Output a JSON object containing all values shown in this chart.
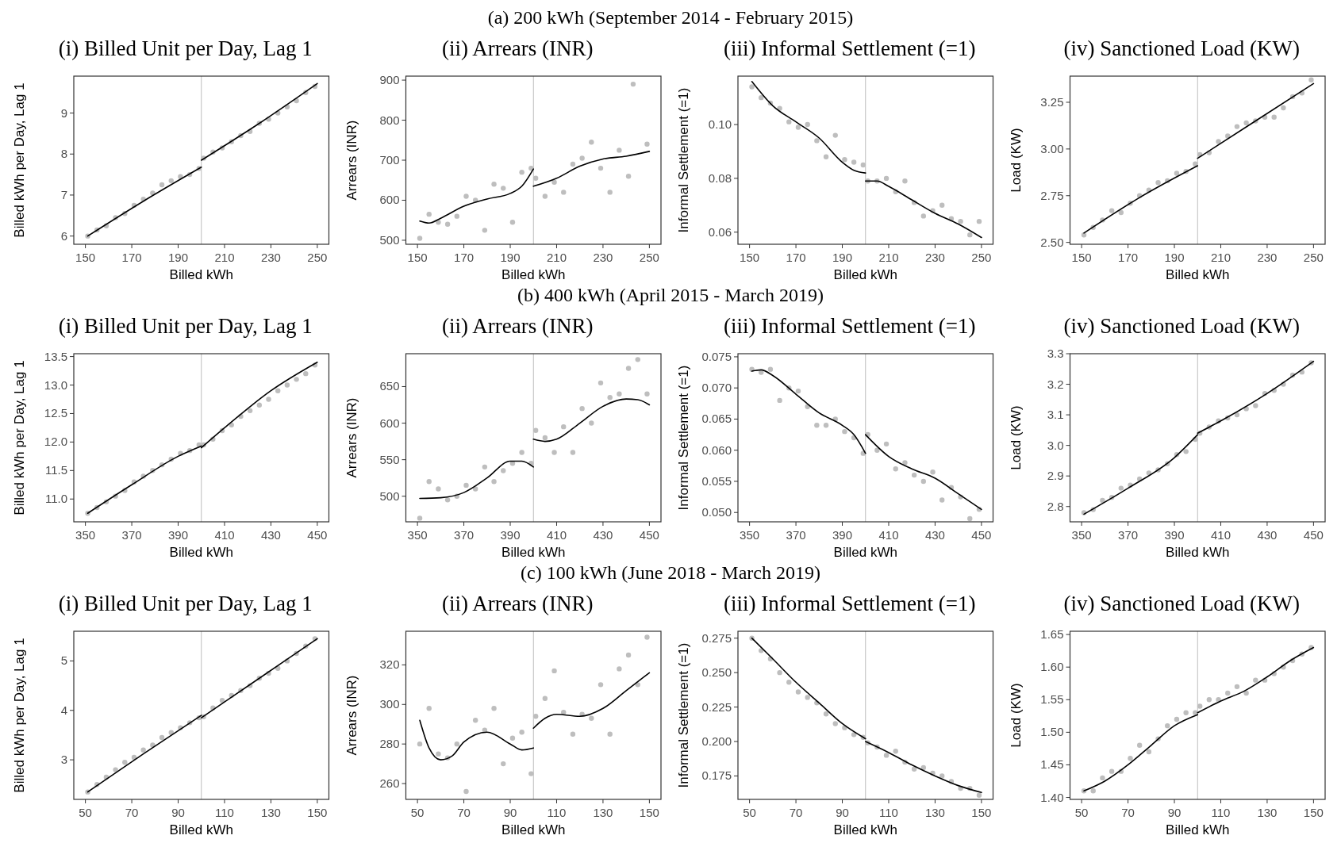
{
  "chart_data": [
    {
      "type": "scatter",
      "title": "(i) Billed Unit per Day, Lag 1",
      "annotations": [
        "(a) 200 kWh (September 2014 - February 2015)"
      ],
      "xlabel": "Billed kWh",
      "ylabel": "Billed kWh per Day, Lag 1",
      "xlim": [
        145,
        255
      ],
      "xticks": [
        150,
        170,
        190,
        210,
        230,
        250
      ],
      "ylim": [
        5.8,
        9.9
      ],
      "yticks": [
        6,
        7,
        8,
        9
      ],
      "grid": false,
      "x": [
        151,
        155,
        159,
        163,
        167,
        171,
        175,
        179,
        183,
        187,
        191,
        195,
        199,
        201,
        205,
        209,
        213,
        217,
        221,
        225,
        229,
        233,
        237,
        241,
        245,
        249
      ],
      "ref_lines": [
        {
          "axis": "x",
          "value": 200,
          "color": "#bdbdbd"
        }
      ],
      "series": [
        {
          "type": "scatter",
          "marker": "circle",
          "color": "#bebebe",
          "values": [
            6.0,
            6.15,
            6.25,
            6.45,
            6.55,
            6.75,
            6.9,
            7.05,
            7.25,
            7.35,
            7.45,
            7.5,
            7.65,
            7.9,
            8.05,
            8.15,
            8.3,
            8.45,
            8.55,
            8.75,
            8.85,
            9.0,
            9.15,
            9.3,
            9.5,
            9.65
          ]
        },
        {
          "type": "line",
          "color": "#000000",
          "x": [
            151,
            175,
            200
          ],
          "values": [
            6.0,
            6.85,
            7.68
          ]
        },
        {
          "type": "line",
          "color": "#000000",
          "x": [
            200,
            225,
            250
          ],
          "values": [
            7.85,
            8.75,
            9.72
          ]
        }
      ]
    },
    {
      "type": "scatter",
      "title": "(ii) Arrears (INR)",
      "xlabel": "Billed kWh",
      "ylabel": "Arrears (INR)",
      "xlim": [
        145,
        255
      ],
      "xticks": [
        150,
        170,
        190,
        210,
        230,
        250
      ],
      "ylim": [
        490,
        910
      ],
      "yticks": [
        500,
        600,
        700,
        800,
        900
      ],
      "grid": false,
      "x": [
        151,
        155,
        159,
        163,
        167,
        171,
        175,
        179,
        183,
        187,
        191,
        195,
        199,
        201,
        205,
        209,
        213,
        217,
        221,
        225,
        229,
        233,
        237,
        241,
        243,
        249
      ],
      "ref_lines": [
        {
          "axis": "x",
          "value": 200,
          "color": "#bdbdbd"
        }
      ],
      "series": [
        {
          "type": "scatter",
          "marker": "circle",
          "color": "#bebebe",
          "values": [
            505,
            565,
            545,
            540,
            560,
            610,
            600,
            525,
            640,
            630,
            545,
            670,
            680,
            655,
            610,
            645,
            620,
            690,
            705,
            745,
            680,
            620,
            725,
            660,
            890,
            740
          ]
        },
        {
          "type": "line",
          "color": "#000000",
          "x": [
            151,
            155,
            160,
            170,
            180,
            190,
            195,
            200
          ],
          "values": [
            548,
            543,
            555,
            585,
            603,
            617,
            635,
            678
          ]
        },
        {
          "type": "line",
          "color": "#000000",
          "x": [
            200,
            210,
            220,
            230,
            240,
            250
          ],
          "values": [
            635,
            655,
            685,
            703,
            710,
            722
          ]
        }
      ]
    },
    {
      "type": "scatter",
      "title": "(iii) Informal Settlement (=1)",
      "xlabel": "Billed kWh",
      "ylabel": "Informal Settlement (=1)",
      "xlim": [
        145,
        255
      ],
      "xticks": [
        150,
        170,
        190,
        210,
        230,
        250
      ],
      "ylim": [
        0.0555,
        0.118
      ],
      "yticks": [
        {
          "value": 0.06,
          "label": "0.06"
        },
        {
          "value": 0.08,
          "label": "0.08"
        },
        {
          "value": 0.1,
          "label": "0.10"
        }
      ],
      "grid": false,
      "x": [
        151,
        155,
        159,
        163,
        167,
        171,
        175,
        179,
        183,
        187,
        191,
        195,
        199,
        201,
        205,
        209,
        213,
        217,
        221,
        225,
        229,
        233,
        237,
        241,
        245,
        249
      ],
      "ref_lines": [
        {
          "axis": "x",
          "value": 200,
          "color": "#bdbdbd"
        }
      ],
      "series": [
        {
          "type": "scatter",
          "marker": "circle",
          "color": "#bebebe",
          "values": [
            0.114,
            0.11,
            0.108,
            0.106,
            0.101,
            0.099,
            0.1,
            0.094,
            0.088,
            0.096,
            0.087,
            0.086,
            0.085,
            0.079,
            0.079,
            0.08,
            0.075,
            0.079,
            0.071,
            0.066,
            0.068,
            0.07,
            0.065,
            0.064,
            0.059,
            0.064
          ]
        },
        {
          "type": "line",
          "color": "#000000",
          "x": [
            151,
            160,
            170,
            180,
            190,
            195,
            200
          ],
          "values": [
            0.116,
            0.107,
            0.101,
            0.095,
            0.086,
            0.083,
            0.082
          ]
        },
        {
          "type": "line",
          "color": "#000000",
          "x": [
            200,
            205,
            210,
            220,
            230,
            240,
            250
          ],
          "values": [
            0.079,
            0.079,
            0.077,
            0.072,
            0.067,
            0.063,
            0.058
          ]
        }
      ]
    },
    {
      "type": "scatter",
      "title": "(iv) Sanctioned Load (KW)",
      "xlabel": "Billed kWh",
      "ylabel": "Load (KW)",
      "xlim": [
        145,
        255
      ],
      "xticks": [
        150,
        170,
        190,
        210,
        230,
        250
      ],
      "ylim": [
        2.49,
        3.39
      ],
      "yticks": [
        {
          "value": 2.5,
          "label": "2.50"
        },
        {
          "value": 2.75,
          "label": "2.75"
        },
        {
          "value": 3,
          "label": "3.00"
        },
        {
          "value": 3.25,
          "label": "3.25"
        }
      ],
      "grid": false,
      "x": [
        151,
        155,
        159,
        163,
        167,
        171,
        175,
        179,
        183,
        187,
        191,
        195,
        199,
        201,
        205,
        209,
        213,
        217,
        221,
        225,
        229,
        233,
        237,
        241,
        245,
        249
      ],
      "ref_lines": [
        {
          "axis": "x",
          "value": 200,
          "color": "#bdbdbd"
        }
      ],
      "series": [
        {
          "type": "scatter",
          "marker": "circle",
          "color": "#bebebe",
          "values": [
            2.54,
            2.58,
            2.62,
            2.67,
            2.66,
            2.71,
            2.75,
            2.78,
            2.82,
            2.83,
            2.87,
            2.88,
            2.92,
            2.97,
            2.98,
            3.04,
            3.07,
            3.12,
            3.14,
            3.15,
            3.17,
            3.17,
            3.22,
            3.28,
            3.3,
            3.37
          ]
        },
        {
          "type": "line",
          "color": "#000000",
          "x": [
            151,
            175,
            200
          ],
          "values": [
            2.55,
            2.74,
            2.91
          ]
        },
        {
          "type": "line",
          "color": "#000000",
          "x": [
            200,
            225,
            250
          ],
          "values": [
            2.95,
            3.15,
            3.35
          ]
        }
      ]
    },
    {
      "type": "scatter",
      "title": "(i) Billed Unit per Day, Lag 1",
      "annotations": [
        "(b) 400 kWh (April 2015 - March 2019)"
      ],
      "xlabel": "Billed kWh",
      "ylabel": "Billed kWh per Day, Lag 1",
      "xlim": [
        345,
        455
      ],
      "xticks": [
        350,
        370,
        390,
        410,
        430,
        450
      ],
      "ylim": [
        10.6,
        13.55
      ],
      "yticks": [
        {
          "value": 11,
          "label": "11.0"
        },
        {
          "value": 11.5,
          "label": "11.5"
        },
        {
          "value": 12,
          "label": "12.0"
        },
        {
          "value": 12.5,
          "label": "12.5"
        },
        {
          "value": 13,
          "label": "13.0"
        },
        {
          "value": 13.5,
          "label": "13.5"
        }
      ],
      "grid": false,
      "x": [
        351,
        355,
        359,
        363,
        367,
        371,
        375,
        379,
        383,
        387,
        391,
        395,
        399,
        401,
        405,
        409,
        413,
        417,
        421,
        425,
        429,
        433,
        437,
        441,
        445,
        449
      ],
      "ref_lines": [
        {
          "axis": "x",
          "value": 400,
          "color": "#bdbdbd"
        }
      ],
      "series": [
        {
          "type": "scatter",
          "marker": "circle",
          "color": "#bebebe",
          "values": [
            10.75,
            10.85,
            10.95,
            11.05,
            11.15,
            11.3,
            11.4,
            11.5,
            11.6,
            11.7,
            11.8,
            11.85,
            11.95,
            11.95,
            12.05,
            12.2,
            12.3,
            12.45,
            12.55,
            12.65,
            12.75,
            12.9,
            13.0,
            13.1,
            13.2,
            13.35
          ]
        },
        {
          "type": "line",
          "color": "#000000",
          "x": [
            351,
            370,
            390,
            400
          ],
          "values": [
            10.75,
            11.25,
            11.75,
            11.93
          ]
        },
        {
          "type": "line",
          "color": "#000000",
          "x": [
            400,
            410,
            430,
            450
          ],
          "values": [
            11.9,
            12.25,
            12.9,
            13.4
          ]
        }
      ]
    },
    {
      "type": "scatter",
      "title": "(ii) Arrears (INR)",
      "xlabel": "Billed kWh",
      "ylabel": "Arrears (INR)",
      "xlim": [
        345,
        455
      ],
      "xticks": [
        350,
        370,
        390,
        410,
        430,
        450
      ],
      "ylim": [
        465,
        695
      ],
      "yticks": [
        500,
        550,
        600,
        650
      ],
      "grid": false,
      "x": [
        351,
        355,
        359,
        363,
        367,
        371,
        375,
        379,
        383,
        387,
        391,
        395,
        399,
        401,
        405,
        409,
        413,
        417,
        421,
        425,
        429,
        433,
        437,
        441,
        445,
        449
      ],
      "ref_lines": [
        {
          "axis": "x",
          "value": 400,
          "color": "#bdbdbd"
        }
      ],
      "series": [
        {
          "type": "scatter",
          "marker": "circle",
          "color": "#bebebe",
          "values": [
            470,
            520,
            510,
            495,
            500,
            515,
            510,
            540,
            520,
            535,
            545,
            560,
            545,
            590,
            580,
            560,
            595,
            560,
            620,
            600,
            655,
            635,
            640,
            675,
            687,
            640
          ]
        },
        {
          "type": "line",
          "color": "#000000",
          "x": [
            351,
            360,
            370,
            380,
            390,
            395,
            400
          ],
          "values": [
            497,
            498,
            505,
            525,
            548,
            548,
            540
          ]
        },
        {
          "type": "line",
          "color": "#000000",
          "x": [
            400,
            405,
            410,
            420,
            430,
            440,
            445,
            450
          ],
          "values": [
            578,
            575,
            578,
            600,
            623,
            633,
            632,
            625
          ]
        }
      ]
    },
    {
      "type": "scatter",
      "title": "(iii) Informal Settlement (=1)",
      "xlabel": "Billed kWh",
      "ylabel": "Informal Settlement (=1)",
      "xlim": [
        345,
        455
      ],
      "xticks": [
        350,
        370,
        390,
        410,
        430,
        450
      ],
      "ylim": [
        0.0485,
        0.0755
      ],
      "yticks": [
        {
          "value": 0.05,
          "label": "0.050"
        },
        {
          "value": 0.055,
          "label": "0.055"
        },
        {
          "value": 0.06,
          "label": "0.060"
        },
        {
          "value": 0.065,
          "label": "0.065"
        },
        {
          "value": 0.07,
          "label": "0.070"
        },
        {
          "value": 0.075,
          "label": "0.075"
        }
      ],
      "grid": false,
      "x": [
        351,
        355,
        359,
        363,
        367,
        371,
        375,
        379,
        383,
        387,
        391,
        395,
        399,
        401,
        405,
        409,
        413,
        417,
        421,
        425,
        429,
        433,
        437,
        441,
        445,
        449
      ],
      "ref_lines": [
        {
          "axis": "x",
          "value": 400,
          "color": "#bdbdbd"
        }
      ],
      "series": [
        {
          "type": "scatter",
          "marker": "circle",
          "color": "#bebebe",
          "values": [
            0.073,
            0.0725,
            0.073,
            0.068,
            0.07,
            0.0695,
            0.067,
            0.064,
            0.064,
            0.065,
            0.063,
            0.062,
            0.0595,
            0.0625,
            0.06,
            0.061,
            0.057,
            0.058,
            0.056,
            0.055,
            0.0565,
            0.052,
            0.054,
            0.0525,
            0.049,
            0.0505
          ]
        },
        {
          "type": "line",
          "color": "#000000",
          "x": [
            351,
            355,
            360,
            370,
            380,
            390,
            395,
            400
          ],
          "values": [
            0.0727,
            0.0729,
            0.072,
            0.069,
            0.066,
            0.064,
            0.0625,
            0.0595
          ]
        },
        {
          "type": "line",
          "color": "#000000",
          "x": [
            400,
            410,
            420,
            430,
            440,
            450
          ],
          "values": [
            0.0625,
            0.059,
            0.057,
            0.0555,
            0.053,
            0.0505
          ]
        }
      ]
    },
    {
      "type": "scatter",
      "title": "(iv) Sanctioned Load (KW)",
      "xlabel": "Billed kWh",
      "ylabel": "Load (KW)",
      "xlim": [
        345,
        455
      ],
      "xticks": [
        350,
        370,
        390,
        410,
        430,
        450
      ],
      "ylim": [
        2.75,
        3.3
      ],
      "yticks": [
        2.8,
        2.9,
        {
          "value": 3,
          "label": "3.0"
        },
        3.1,
        3.2,
        3.3
      ],
      "grid": false,
      "x": [
        351,
        355,
        359,
        363,
        367,
        371,
        375,
        379,
        383,
        387,
        391,
        395,
        399,
        401,
        405,
        409,
        413,
        417,
        421,
        425,
        429,
        433,
        437,
        441,
        445,
        449
      ],
      "ref_lines": [
        {
          "axis": "x",
          "value": 400,
          "color": "#bdbdbd"
        }
      ],
      "series": [
        {
          "type": "scatter",
          "marker": "circle",
          "color": "#bebebe",
          "values": [
            2.78,
            2.79,
            2.82,
            2.83,
            2.86,
            2.87,
            2.89,
            2.91,
            2.92,
            2.94,
            2.97,
            2.98,
            3.02,
            3.04,
            3.06,
            3.08,
            3.09,
            3.1,
            3.12,
            3.13,
            3.17,
            3.18,
            3.2,
            3.23,
            3.24,
            3.27
          ]
        },
        {
          "type": "line",
          "color": "#000000",
          "x": [
            351,
            370,
            390,
            400
          ],
          "values": [
            2.775,
            2.86,
            2.96,
            3.035
          ]
        },
        {
          "type": "line",
          "color": "#000000",
          "x": [
            400,
            410,
            430,
            450
          ],
          "values": [
            3.04,
            3.08,
            3.17,
            3.275
          ]
        }
      ]
    },
    {
      "type": "scatter",
      "title": "(i) Billed Unit per Day, Lag 1",
      "annotations": [
        "(c) 100 kWh (June 2018 - March 2019)"
      ],
      "xlabel": "Billed kWh",
      "ylabel": "Billed kWh per Day, Lag 1",
      "xlim": [
        45,
        155
      ],
      "xticks": [
        50,
        70,
        90,
        110,
        130,
        150
      ],
      "ylim": [
        2.2,
        5.6
      ],
      "yticks": [
        3,
        4,
        5
      ],
      "grid": false,
      "x": [
        51,
        55,
        59,
        63,
        67,
        71,
        75,
        79,
        83,
        87,
        91,
        95,
        99,
        101,
        105,
        109,
        113,
        117,
        121,
        125,
        129,
        133,
        137,
        141,
        145,
        149
      ],
      "ref_lines": [
        {
          "axis": "x",
          "value": 100,
          "color": "#bdbdbd"
        }
      ],
      "series": [
        {
          "type": "scatter",
          "marker": "circle",
          "color": "#bebebe",
          "values": [
            2.35,
            2.5,
            2.65,
            2.8,
            2.95,
            3.05,
            3.2,
            3.3,
            3.45,
            3.55,
            3.65,
            3.75,
            3.85,
            3.87,
            4.05,
            4.2,
            4.3,
            4.4,
            4.5,
            4.65,
            4.75,
            4.85,
            5.0,
            5.15,
            5.3,
            5.45
          ]
        },
        {
          "type": "line",
          "color": "#000000",
          "x": [
            51,
            75,
            100
          ],
          "values": [
            2.35,
            3.12,
            3.9
          ]
        },
        {
          "type": "line",
          "color": "#000000",
          "x": [
            100,
            125,
            150
          ],
          "values": [
            3.85,
            4.65,
            5.45
          ]
        }
      ]
    },
    {
      "type": "scatter",
      "title": "(ii) Arrears (INR)",
      "xlabel": "Billed kWh",
      "ylabel": "Arrears (INR)",
      "xlim": [
        45,
        155
      ],
      "xticks": [
        50,
        70,
        90,
        110,
        130,
        150
      ],
      "ylim": [
        252,
        337
      ],
      "yticks": [
        260,
        280,
        300,
        320
      ],
      "grid": false,
      "x": [
        51,
        55,
        59,
        63,
        67,
        71,
        75,
        79,
        83,
        87,
        91,
        95,
        99,
        101,
        105,
        109,
        113,
        117,
        121,
        125,
        129,
        133,
        137,
        141,
        145,
        149
      ],
      "ref_lines": [
        {
          "axis": "x",
          "value": 100,
          "color": "#bdbdbd"
        }
      ],
      "series": [
        {
          "type": "scatter",
          "marker": "circle",
          "color": "#bebebe",
          "values": [
            280,
            298,
            275,
            273,
            280,
            256,
            292,
            287,
            298,
            270,
            283,
            286,
            265,
            294,
            303,
            317,
            296,
            285,
            295,
            293,
            310,
            285,
            318,
            325,
            310,
            334
          ]
        },
        {
          "type": "line",
          "color": "#000000",
          "x": [
            51,
            55,
            60,
            65,
            70,
            80,
            90,
            95,
            100
          ],
          "values": [
            292,
            278,
            272,
            274,
            281,
            286,
            280,
            277,
            278
          ]
        },
        {
          "type": "line",
          "color": "#000000",
          "x": [
            100,
            105,
            110,
            120,
            130,
            140,
            150
          ],
          "values": [
            288,
            293,
            295,
            294,
            298,
            307,
            316
          ]
        }
      ]
    },
    {
      "type": "scatter",
      "title": "(iii) Informal Settlement (=1)",
      "xlabel": "Billed kWh",
      "ylabel": "Informal Settlement (=1)",
      "xlim": [
        45,
        155
      ],
      "xticks": [
        50,
        70,
        90,
        110,
        130,
        150
      ],
      "ylim": [
        0.158,
        0.28
      ],
      "yticks": [
        0.175,
        {
          "value": 0.2,
          "label": "0.200"
        },
        0.225,
        {
          "value": 0.25,
          "label": "0.250"
        },
        0.275
      ],
      "grid": false,
      "x": [
        51,
        55,
        59,
        63,
        67,
        71,
        75,
        79,
        83,
        87,
        91,
        95,
        99,
        101,
        105,
        109,
        113,
        117,
        121,
        125,
        129,
        133,
        137,
        141,
        145,
        149
      ],
      "ref_lines": [
        {
          "axis": "x",
          "value": 100,
          "color": "#bdbdbd"
        }
      ],
      "series": [
        {
          "type": "scatter",
          "marker": "circle",
          "color": "#bebebe",
          "values": [
            0.275,
            0.266,
            0.26,
            0.25,
            0.243,
            0.236,
            0.232,
            0.228,
            0.22,
            0.213,
            0.21,
            0.205,
            0.203,
            0.199,
            0.196,
            0.19,
            0.193,
            0.185,
            0.18,
            0.181,
            0.177,
            0.175,
            0.171,
            0.166,
            0.166,
            0.161
          ]
        },
        {
          "type": "line",
          "color": "#000000",
          "x": [
            51,
            60,
            70,
            80,
            90,
            100
          ],
          "values": [
            0.275,
            0.26,
            0.243,
            0.228,
            0.213,
            0.202
          ]
        },
        {
          "type": "line",
          "color": "#000000",
          "x": [
            100,
            110,
            120,
            130,
            140,
            150
          ],
          "values": [
            0.2,
            0.192,
            0.183,
            0.175,
            0.168,
            0.163
          ]
        }
      ]
    },
    {
      "type": "scatter",
      "title": "(iv) Sanctioned Load (KW)",
      "xlabel": "Billed kWh",
      "ylabel": "Load (KW)",
      "xlim": [
        45,
        155
      ],
      "xticks": [
        50,
        70,
        90,
        110,
        130,
        150
      ],
      "ylim": [
        1.397,
        1.655
      ],
      "yticks": [
        {
          "value": 1.4,
          "label": "1.40"
        },
        1.45,
        {
          "value": 1.5,
          "label": "1.50"
        },
        1.55,
        {
          "value": 1.6,
          "label": "1.60"
        },
        1.65
      ],
      "grid": false,
      "x": [
        51,
        55,
        59,
        63,
        67,
        71,
        75,
        79,
        83,
        87,
        91,
        95,
        99,
        101,
        105,
        109,
        113,
        117,
        121,
        125,
        129,
        133,
        137,
        141,
        145,
        149
      ],
      "ref_lines": [
        {
          "axis": "x",
          "value": 100,
          "color": "#bdbdbd"
        }
      ],
      "series": [
        {
          "type": "scatter",
          "marker": "circle",
          "color": "#bebebe",
          "values": [
            1.41,
            1.41,
            1.43,
            1.44,
            1.44,
            1.46,
            1.48,
            1.47,
            1.49,
            1.51,
            1.52,
            1.53,
            1.53,
            1.54,
            1.55,
            1.55,
            1.56,
            1.57,
            1.56,
            1.58,
            1.58,
            1.59,
            1.6,
            1.61,
            1.62,
            1.63
          ]
        },
        {
          "type": "line",
          "color": "#000000",
          "x": [
            51,
            60,
            70,
            80,
            90,
            100
          ],
          "values": [
            1.41,
            1.425,
            1.45,
            1.48,
            1.51,
            1.527
          ]
        },
        {
          "type": "line",
          "color": "#000000",
          "x": [
            100,
            110,
            120,
            130,
            140,
            150
          ],
          "values": [
            1.53,
            1.548,
            1.563,
            1.585,
            1.61,
            1.63
          ]
        }
      ]
    }
  ]
}
